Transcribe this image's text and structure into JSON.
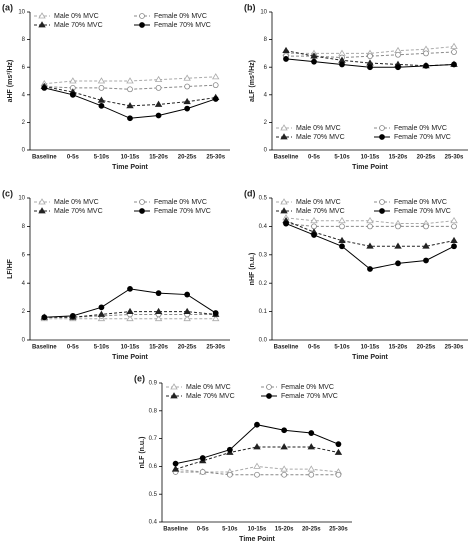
{
  "chart_data": [
    {
      "type": "line",
      "panel_label": "(a)",
      "x_label": "Time Point",
      "y_label": "aHF (ms²/Hz)",
      "legend": "top",
      "categories": [
        "Baseline",
        "0-5s",
        "5-10s",
        "10-15s",
        "15-20s",
        "20-25s",
        "25-30s"
      ],
      "ylim": [
        0,
        10
      ],
      "yticks": [
        0,
        2,
        4,
        6,
        8,
        10
      ],
      "series": [
        {
          "name": "Male 0% MVC",
          "color": "#aaaaaa",
          "marker": "triangle-open",
          "dashed": true,
          "values": [
            4.8,
            5.0,
            5.0,
            5.0,
            5.1,
            5.2,
            5.3
          ]
        },
        {
          "name": "Female 0% MVC",
          "color": "#888888",
          "marker": "circle-open",
          "dashed": true,
          "values": [
            4.6,
            4.5,
            4.5,
            4.4,
            4.5,
            4.6,
            4.7
          ]
        },
        {
          "name": "Male 70% MVC",
          "color": "#222222",
          "marker": "triangle",
          "dashed": true,
          "values": [
            4.6,
            4.2,
            3.6,
            3.2,
            3.3,
            3.5,
            3.8
          ]
        },
        {
          "name": "Female 70% MVC",
          "color": "#000000",
          "marker": "circle",
          "dashed": false,
          "values": [
            4.5,
            4.0,
            3.2,
            2.3,
            2.5,
            3.0,
            3.7
          ]
        }
      ]
    },
    {
      "type": "line",
      "panel_label": "(b)",
      "x_label": "Time Point",
      "y_label": "aLF (ms²/Hz)",
      "legend": "bottom",
      "categories": [
        "Baseline",
        "0-5s",
        "5-10s",
        "10-15s",
        "15-20s",
        "20-25s",
        "25-30s"
      ],
      "ylim": [
        0,
        10
      ],
      "yticks": [
        0,
        2,
        4,
        6,
        8,
        10
      ],
      "series": [
        {
          "name": "Male 0% MVC",
          "color": "#aaaaaa",
          "marker": "triangle-open",
          "dashed": true,
          "values": [
            7.0,
            7.0,
            7.0,
            7.0,
            7.2,
            7.3,
            7.5
          ]
        },
        {
          "name": "Female 0% MVC",
          "color": "#888888",
          "marker": "circle-open",
          "dashed": true,
          "values": [
            6.8,
            6.8,
            6.7,
            6.8,
            6.9,
            7.0,
            7.1
          ]
        },
        {
          "name": "Male 70% MVC",
          "color": "#222222",
          "marker": "triangle",
          "dashed": true,
          "values": [
            7.2,
            6.8,
            6.5,
            6.3,
            6.2,
            6.1,
            6.2
          ]
        },
        {
          "name": "Female 70% MVC",
          "color": "#000000",
          "marker": "circle",
          "dashed": false,
          "values": [
            6.6,
            6.4,
            6.2,
            6.0,
            6.0,
            6.1,
            6.2
          ]
        }
      ]
    },
    {
      "type": "line",
      "panel_label": "(c)",
      "x_label": "Time Point",
      "y_label": "LF/HF",
      "legend": "top",
      "categories": [
        "Baseline",
        "0-5s",
        "5-10s",
        "10-15s",
        "15-20s",
        "20-25s",
        "25-30s"
      ],
      "ylim": [
        0,
        10
      ],
      "yticks": [
        0,
        2,
        4,
        6,
        8,
        10
      ],
      "series": [
        {
          "name": "Male 0% MVC",
          "color": "#aaaaaa",
          "marker": "triangle-open",
          "dashed": true,
          "values": [
            1.5,
            1.5,
            1.5,
            1.5,
            1.5,
            1.5,
            1.5
          ]
        },
        {
          "name": "Female 0% MVC",
          "color": "#888888",
          "marker": "circle-open",
          "dashed": true,
          "values": [
            1.6,
            1.6,
            1.7,
            1.8,
            1.8,
            1.8,
            1.8
          ]
        },
        {
          "name": "Male 70% MVC",
          "color": "#222222",
          "marker": "triangle",
          "dashed": true,
          "values": [
            1.6,
            1.6,
            1.8,
            2.0,
            2.0,
            2.0,
            1.8
          ]
        },
        {
          "name": "Female 70% MVC",
          "color": "#000000",
          "marker": "circle",
          "dashed": false,
          "values": [
            1.6,
            1.7,
            2.3,
            3.6,
            3.3,
            3.2,
            1.9
          ]
        }
      ]
    },
    {
      "type": "line",
      "panel_label": "(d)",
      "x_label": "Time Point",
      "y_label": "nHF (n.u.)",
      "legend": "top",
      "categories": [
        "Baseline",
        "0-5s",
        "5-10s",
        "10-15s",
        "15-20s",
        "20-25s",
        "25-30s"
      ],
      "ylim": [
        0,
        0.5
      ],
      "yticks": [
        {
          "value": 0,
          "label": "0.0"
        },
        0.1,
        0.2,
        0.3,
        0.4,
        0.5
      ],
      "series": [
        {
          "name": "Male 0% MVC",
          "color": "#aaaaaa",
          "marker": "triangle-open",
          "dashed": true,
          "values": [
            0.43,
            0.42,
            0.42,
            0.42,
            0.41,
            0.41,
            0.42
          ]
        },
        {
          "name": "Female 0% MVC",
          "color": "#888888",
          "marker": "circle-open",
          "dashed": true,
          "values": [
            0.41,
            0.4,
            0.4,
            0.4,
            0.4,
            0.4,
            0.4
          ]
        },
        {
          "name": "Male 70% MVC",
          "color": "#222222",
          "marker": "triangle",
          "dashed": true,
          "values": [
            0.42,
            0.38,
            0.35,
            0.33,
            0.33,
            0.33,
            0.35
          ]
        },
        {
          "name": "Female 70% MVC",
          "color": "#000000",
          "marker": "circle",
          "dashed": false,
          "values": [
            0.41,
            0.37,
            0.33,
            0.25,
            0.27,
            0.28,
            0.33
          ]
        }
      ]
    },
    {
      "type": "line",
      "panel_label": "(e)",
      "x_label": "Time Point",
      "y_label": "nLF (n.u.)",
      "legend": "top",
      "categories": [
        "Baseline",
        "0-5s",
        "5-10s",
        "10-15s",
        "15-20s",
        "20-25s",
        "25-30s"
      ],
      "ylim": [
        0.4,
        0.9
      ],
      "yticks": [
        0.4,
        0.5,
        0.6,
        0.7,
        0.8,
        0.9
      ],
      "series": [
        {
          "name": "Male 0% MVC",
          "color": "#aaaaaa",
          "marker": "triangle-open",
          "dashed": true,
          "values": [
            0.59,
            0.58,
            0.58,
            0.6,
            0.59,
            0.59,
            0.58
          ]
        },
        {
          "name": "Female 0% MVC",
          "color": "#888888",
          "marker": "circle-open",
          "dashed": true,
          "values": [
            0.58,
            0.58,
            0.57,
            0.57,
            0.57,
            0.57,
            0.57
          ]
        },
        {
          "name": "Male 70% MVC",
          "color": "#222222",
          "marker": "triangle",
          "dashed": true,
          "values": [
            0.59,
            0.62,
            0.65,
            0.67,
            0.67,
            0.67,
            0.65
          ]
        },
        {
          "name": "Female 70% MVC",
          "color": "#000000",
          "marker": "circle",
          "dashed": false,
          "values": [
            0.61,
            0.63,
            0.66,
            0.75,
            0.73,
            0.72,
            0.68
          ]
        }
      ]
    }
  ]
}
